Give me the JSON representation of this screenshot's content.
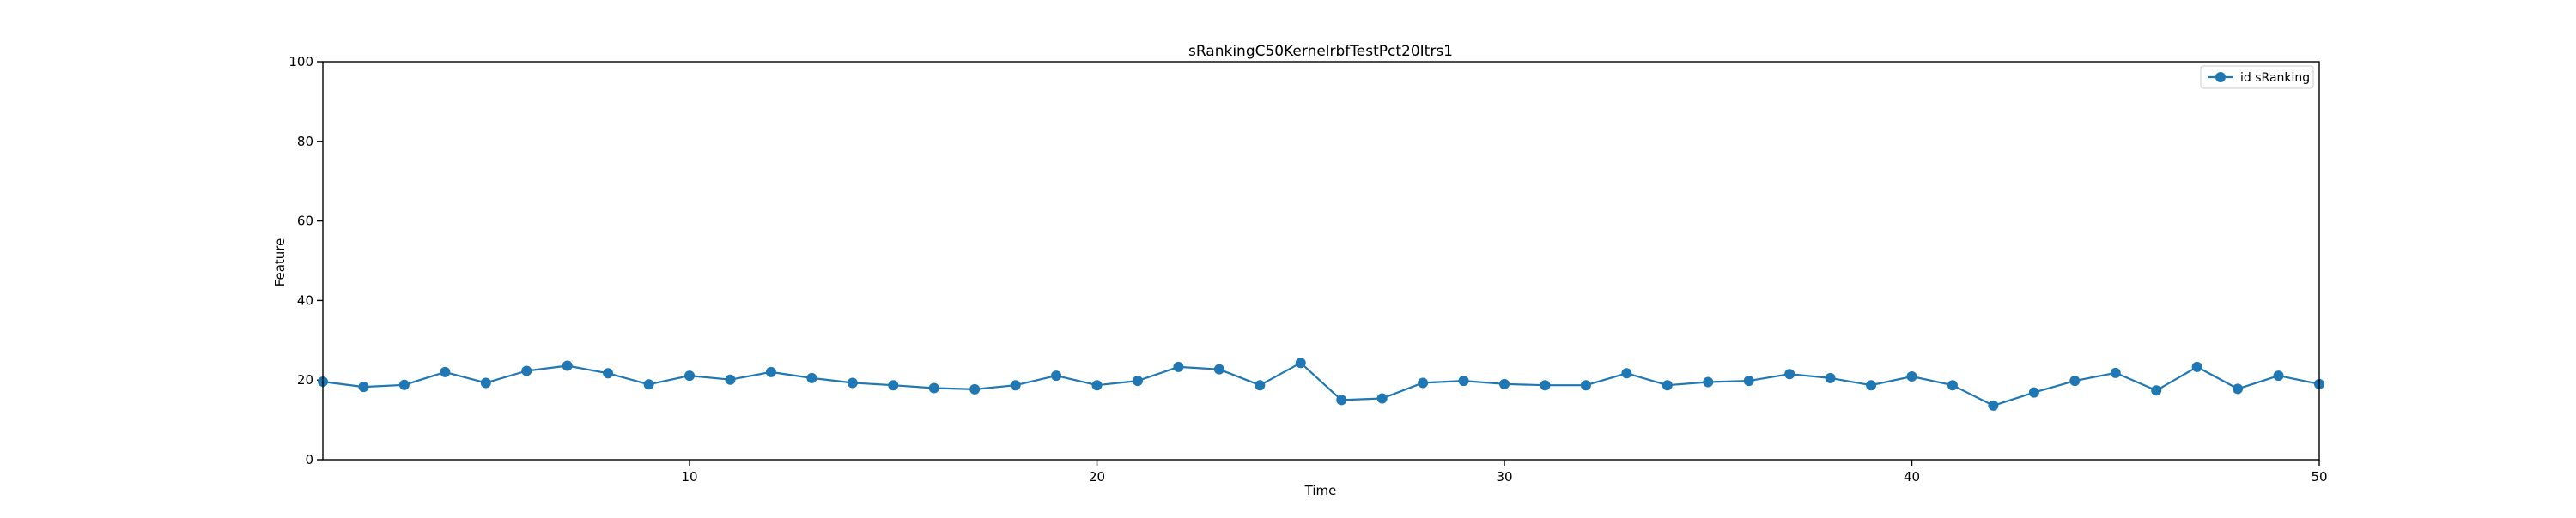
{
  "chart_data": {
    "type": "line",
    "title": "sRankingC50KernelrbfTestPct20Itrs1",
    "xlabel": "Time",
    "ylabel": "Feature",
    "xlim": [
      1,
      50
    ],
    "ylim": [
      0,
      100
    ],
    "xticks": [
      10,
      20,
      30,
      40,
      50
    ],
    "yticks": [
      0,
      20,
      40,
      60,
      80,
      100
    ],
    "grid": false,
    "legend_position": "upper right",
    "series": [
      {
        "name": "id sRanking",
        "color": "#1f77b4",
        "marker": "circle",
        "x": [
          1,
          2,
          3,
          4,
          5,
          6,
          7,
          8,
          9,
          10,
          11,
          12,
          13,
          14,
          15,
          16,
          17,
          18,
          19,
          20,
          21,
          22,
          23,
          24,
          25,
          26,
          27,
          28,
          29,
          30,
          31,
          32,
          33,
          34,
          35,
          36,
          37,
          38,
          39,
          40,
          41,
          42,
          43,
          44,
          45,
          46,
          47,
          48,
          49,
          50
        ],
        "y": [
          19.6,
          18.3,
          18.8,
          22,
          19.3,
          22.3,
          23.6,
          21.7,
          18.9,
          21.1,
          20.1,
          22,
          20.5,
          19.3,
          18.7,
          18,
          17.7,
          18.7,
          21.1,
          18.7,
          19.8,
          23.3,
          22.7,
          18.7,
          24.3,
          15,
          15.4,
          19.3,
          19.8,
          19,
          18.7,
          18.7,
          21.7,
          18.7,
          19.5,
          19.8,
          21.5,
          20.5,
          18.7,
          20.9,
          18.7,
          13.6,
          16.9,
          19.8,
          21.8,
          17.4,
          23.3,
          17.8,
          21.1,
          19
        ]
      }
    ]
  }
}
